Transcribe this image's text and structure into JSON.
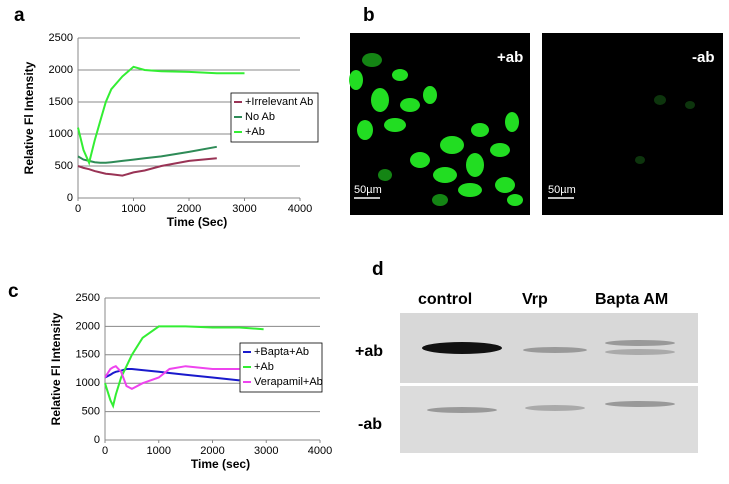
{
  "chart_data": [
    {
      "type": "line",
      "label": "a",
      "y_label": "Relative Fl Intensity",
      "x_label": "Time (Sec)",
      "x": [
        0,
        100,
        200,
        300,
        400,
        500,
        600,
        800,
        1000,
        1200,
        1500,
        2000,
        2500,
        3000
      ],
      "series": [
        {
          "name": "+Irrelevant Ab",
          "color": "#993355",
          "values": [
            500,
            470,
            450,
            420,
            400,
            380,
            370,
            350,
            400,
            430,
            500,
            580,
            620,
            null
          ]
        },
        {
          "name": "No Ab",
          "color": "#2e8b57",
          "values": [
            650,
            600,
            580,
            560,
            550,
            550,
            560,
            580,
            600,
            620,
            650,
            720,
            800,
            null
          ]
        },
        {
          "name": "+Ab",
          "color": "#33ee33",
          "values": [
            1100,
            750,
            550,
            900,
            1200,
            1500,
            1700,
            1900,
            2050,
            2000,
            1980,
            1970,
            1950,
            1950
          ]
        }
      ],
      "xlim": [
        0,
        4000
      ],
      "xticks": [
        0,
        1000,
        2000,
        3000,
        4000
      ],
      "ylim": [
        0,
        2500
      ],
      "yticks": [
        0,
        500,
        1000,
        1500,
        2000,
        2500
      ],
      "grid": true,
      "legend": "right"
    },
    {
      "type": "line",
      "label": "c",
      "y_label": "Relative Fl Intensity",
      "x_label": "Time (sec)",
      "x": [
        0,
        100,
        150,
        200,
        300,
        400,
        500,
        700,
        1000,
        1200,
        1500,
        2000,
        2500,
        2950
      ],
      "series": [
        {
          "name": "+Bapta+Ab",
          "color": "#1a1acc",
          "values": [
            1100,
            1150,
            1180,
            1200,
            1220,
            1250,
            1250,
            1230,
            1200,
            1180,
            1150,
            1100,
            1050,
            null
          ]
        },
        {
          "name": "+Ab",
          "color": "#33ee33",
          "values": [
            1000,
            700,
            600,
            800,
            1100,
            1300,
            1500,
            1800,
            2000,
            2000,
            2000,
            1980,
            1980,
            1950
          ]
        },
        {
          "name": "Verapamil+Ab",
          "color": "#ee44ee",
          "values": [
            1100,
            1250,
            1280,
            1300,
            1200,
            950,
            900,
            1000,
            1100,
            1250,
            1300,
            1250,
            1250,
            null
          ]
        }
      ],
      "xlim": [
        0,
        4000
      ],
      "xticks": [
        0,
        1000,
        2000,
        3000,
        4000
      ],
      "ylim": [
        0,
        2500
      ],
      "yticks": [
        0,
        500,
        1000,
        1500,
        2000,
        2500
      ],
      "grid": true,
      "legend": "right"
    }
  ],
  "panel_b": {
    "label": "b",
    "images": [
      {
        "label": "+ab",
        "scale_bar": "50µm"
      },
      {
        "label": "-ab",
        "scale_bar": "50µm"
      }
    ]
  },
  "panel_d": {
    "label": "d",
    "columns": [
      "control",
      "Vrp",
      "Bapta AM"
    ],
    "rows": [
      "+ab",
      "-ab"
    ]
  }
}
